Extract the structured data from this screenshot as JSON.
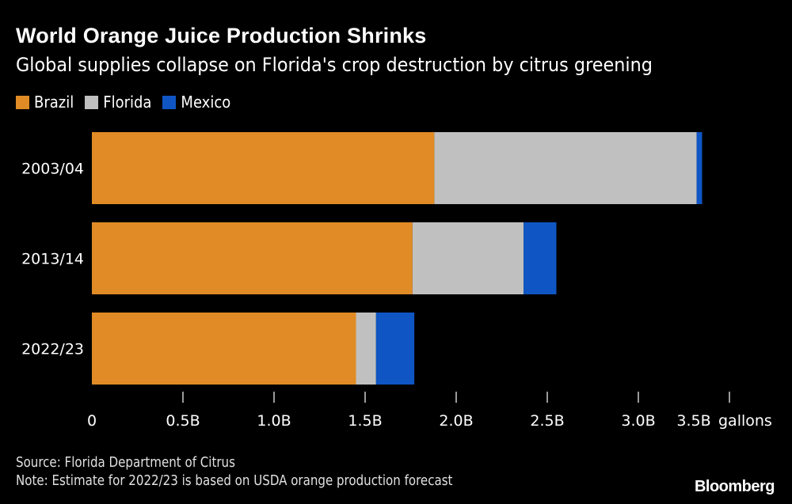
{
  "chart_data": {
    "type": "bar",
    "orientation": "horizontal",
    "stacked": true,
    "title": "World Orange Juice Production Shrinks",
    "subtitle": "Global supplies collapse on Florida's crop destruction by citrus greening",
    "categories": [
      "2003/04",
      "2013/14",
      "2022/23"
    ],
    "series": [
      {
        "name": "Brazil",
        "color": "#e08b25",
        "values": [
          1.88,
          1.76,
          1.45
        ]
      },
      {
        "name": "Florida",
        "color": "#c0c0c0",
        "values": [
          1.44,
          0.61,
          0.11
        ]
      },
      {
        "name": "Mexico",
        "color": "#0f56c4",
        "values": [
          0.03,
          0.18,
          0.21
        ]
      }
    ],
    "xlim": [
      0,
      3.5
    ],
    "xticks": [
      0,
      0.5,
      1.0,
      1.5,
      2.0,
      2.5,
      3.0,
      3.5
    ],
    "xtick_labels": [
      "0",
      "0.5B",
      "1.0B",
      "1.5B",
      "2.0B",
      "2.5B",
      "3.0B",
      "3.5B"
    ],
    "xlabel": "gallons",
    "legend": "top-left",
    "grid": false
  },
  "footer": {
    "source": "Source: Florida Department of Citrus",
    "note": "Note: Estimate for 2022/23 is based on USDA orange production forecast",
    "brand": "Bloomberg"
  }
}
